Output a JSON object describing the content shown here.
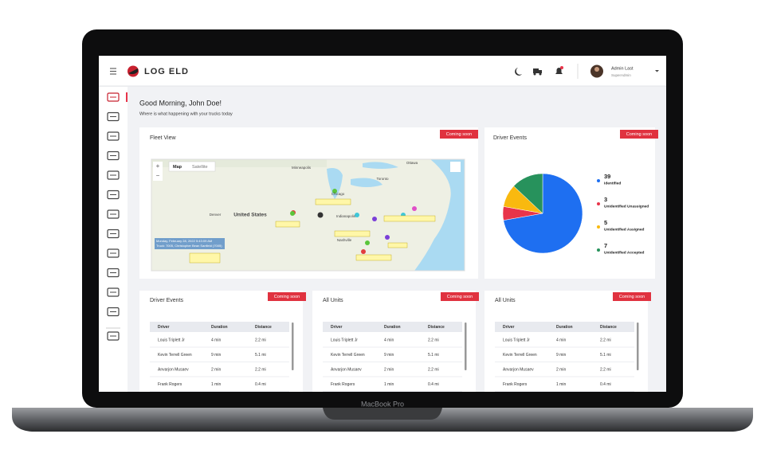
{
  "header": {
    "logo": "LOG ELD",
    "user_name": "Admin Last",
    "user_role": "SuperAdmin"
  },
  "greeting": {
    "title": "Good Morning, John Doe!",
    "subtitle": "Where is what happening with your trucks today"
  },
  "fleet_view": {
    "title": "Fleet View",
    "badge": "Coming soon",
    "map_tabs": [
      "Map",
      "Satellite"
    ],
    "zoom": [
      "+",
      "−"
    ],
    "places": [
      "Minneapolis",
      "Toronto",
      "United States",
      "Chicago",
      "Indianapolis",
      "Nashville",
      "Denver",
      "Ottawa"
    ],
    "tooltip": [
      "Monday, February 28, 2022 5:43:09 AM",
      "Truck: 7005, Christopher Bean Sanfield (7005)"
    ]
  },
  "driver_events_chart": {
    "type": "pie",
    "title": "Driver Events",
    "badge": "Coming soon",
    "series": [
      {
        "name": "Identified",
        "value": 39,
        "color": "#1e6ff1"
      },
      {
        "name": "Unidentified Unassigned",
        "value": 3,
        "color": "#e8344a"
      },
      {
        "name": "Unidentified Assigned",
        "value": 5,
        "color": "#f9b90f"
      },
      {
        "name": "Unidentified Accepted",
        "value": 7,
        "color": "#27925c"
      }
    ]
  },
  "tables": [
    {
      "title": "Driver Events",
      "badge": "Coming soon",
      "columns": [
        "Driver",
        "Duration",
        "Distance"
      ],
      "rows": [
        [
          "Louis Triplett Jr",
          "4 min",
          "2.2 mi"
        ],
        [
          "Kevin Terrell Green",
          "9 min",
          "5.1 mi"
        ],
        [
          "Anvarjon Musaev",
          "2 min",
          "2.2 mi"
        ],
        [
          "Frank Rogers",
          "1 min",
          "0.4 mi"
        ]
      ]
    },
    {
      "title": "All Units",
      "badge": "Coming soon",
      "columns": [
        "Driver",
        "Duration",
        "Distance"
      ],
      "rows": [
        [
          "Louis Triplett Jr",
          "4 min",
          "2.2 mi"
        ],
        [
          "Kevin Terrell Green",
          "9 min",
          "5.1 mi"
        ],
        [
          "Anvarjon Musaev",
          "2 min",
          "2.2 mi"
        ],
        [
          "Frank Rogers",
          "1 min",
          "0.4 mi"
        ]
      ]
    },
    {
      "title": "All Units",
      "badge": "Coming soon",
      "columns": [
        "Driver",
        "Duration",
        "Distance"
      ],
      "rows": [
        [
          "Louis Triplett Jr",
          "4 min",
          "2.2 mi"
        ],
        [
          "Kevin Terrell Green",
          "9 min",
          "5.1 mi"
        ],
        [
          "Anvarjon Musaev",
          "2 min",
          "2.2 mi"
        ],
        [
          "Frank Rogers",
          "1 min",
          "0.4 mi"
        ]
      ]
    }
  ],
  "laptop_label": "MacBook Pro"
}
